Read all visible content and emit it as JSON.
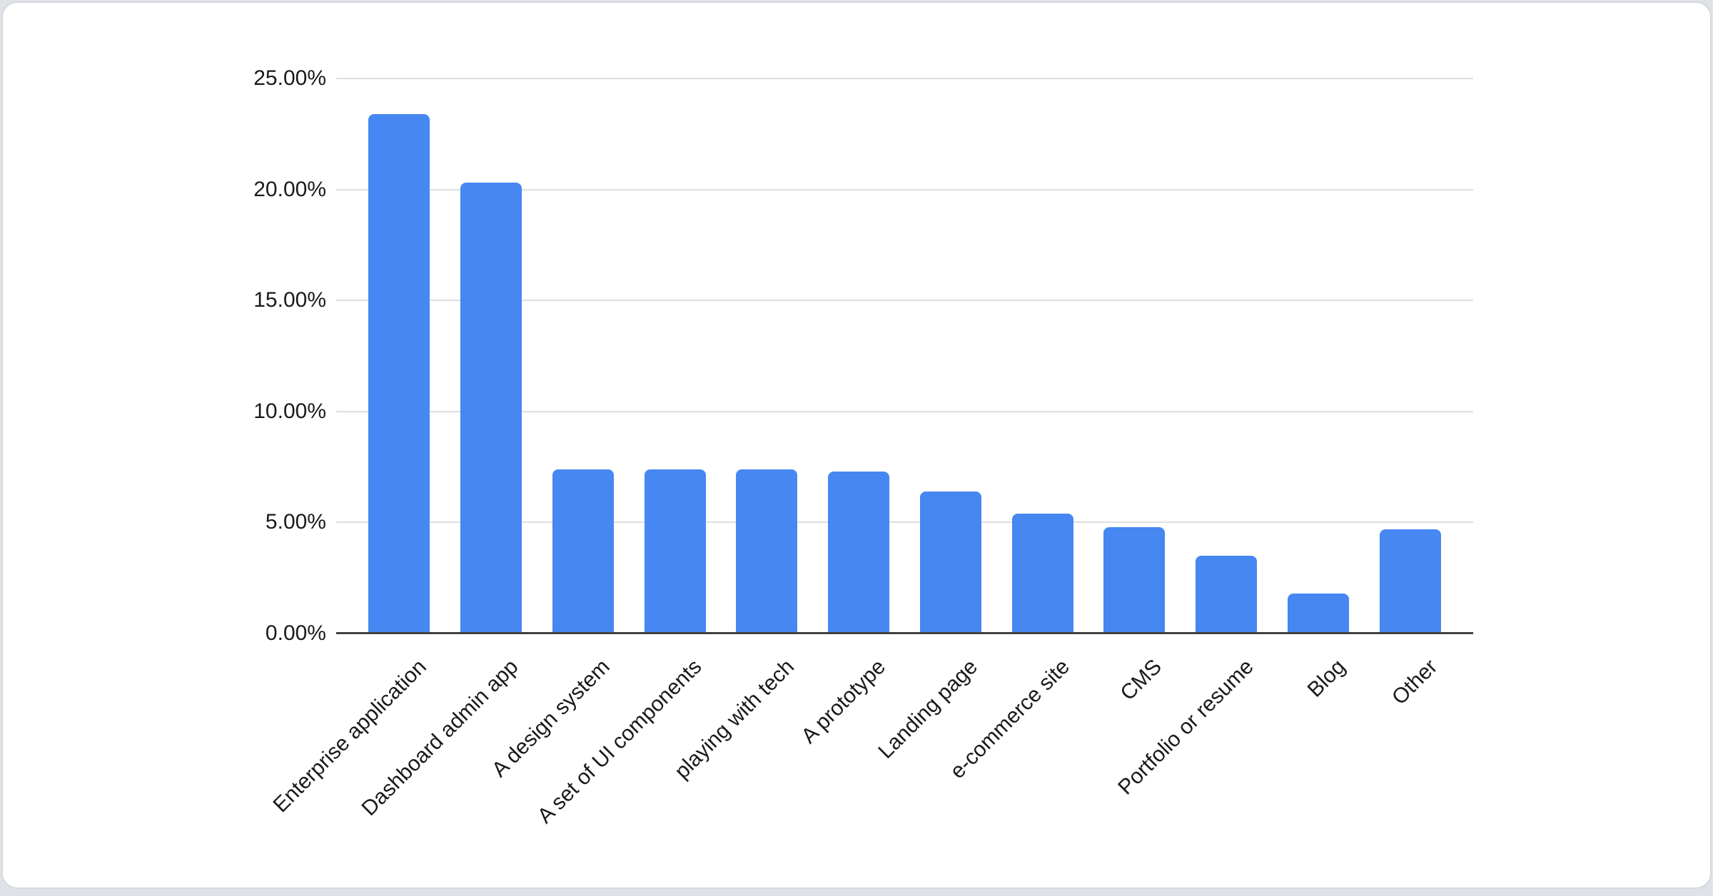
{
  "chart_data": {
    "type": "bar",
    "title": "",
    "categories": [
      "Enterprise application",
      "Dashboard admin app",
      "A design system",
      "A set of UI components",
      "playing with tech",
      "A prototype",
      "Landing page",
      "e-commerce site",
      "CMS",
      "Portfolio or resume",
      "Blog",
      "Other"
    ],
    "values": [
      23.4,
      20.3,
      7.4,
      7.4,
      7.4,
      7.3,
      6.4,
      5.4,
      4.8,
      3.5,
      1.8,
      4.7
    ],
    "value_unit": "%",
    "y_ticks": [
      "0.00%",
      "5.00%",
      "10.00%",
      "15.00%",
      "20.00%",
      "25.00%"
    ],
    "ylim": [
      0,
      25
    ],
    "grid": true,
    "legend": "none",
    "xlabel": "",
    "ylabel": "",
    "bar_color": "#4687f1",
    "axis_line_color": "#424242",
    "gridline_color": "#dedede",
    "label_color": "#1a1a1a"
  }
}
